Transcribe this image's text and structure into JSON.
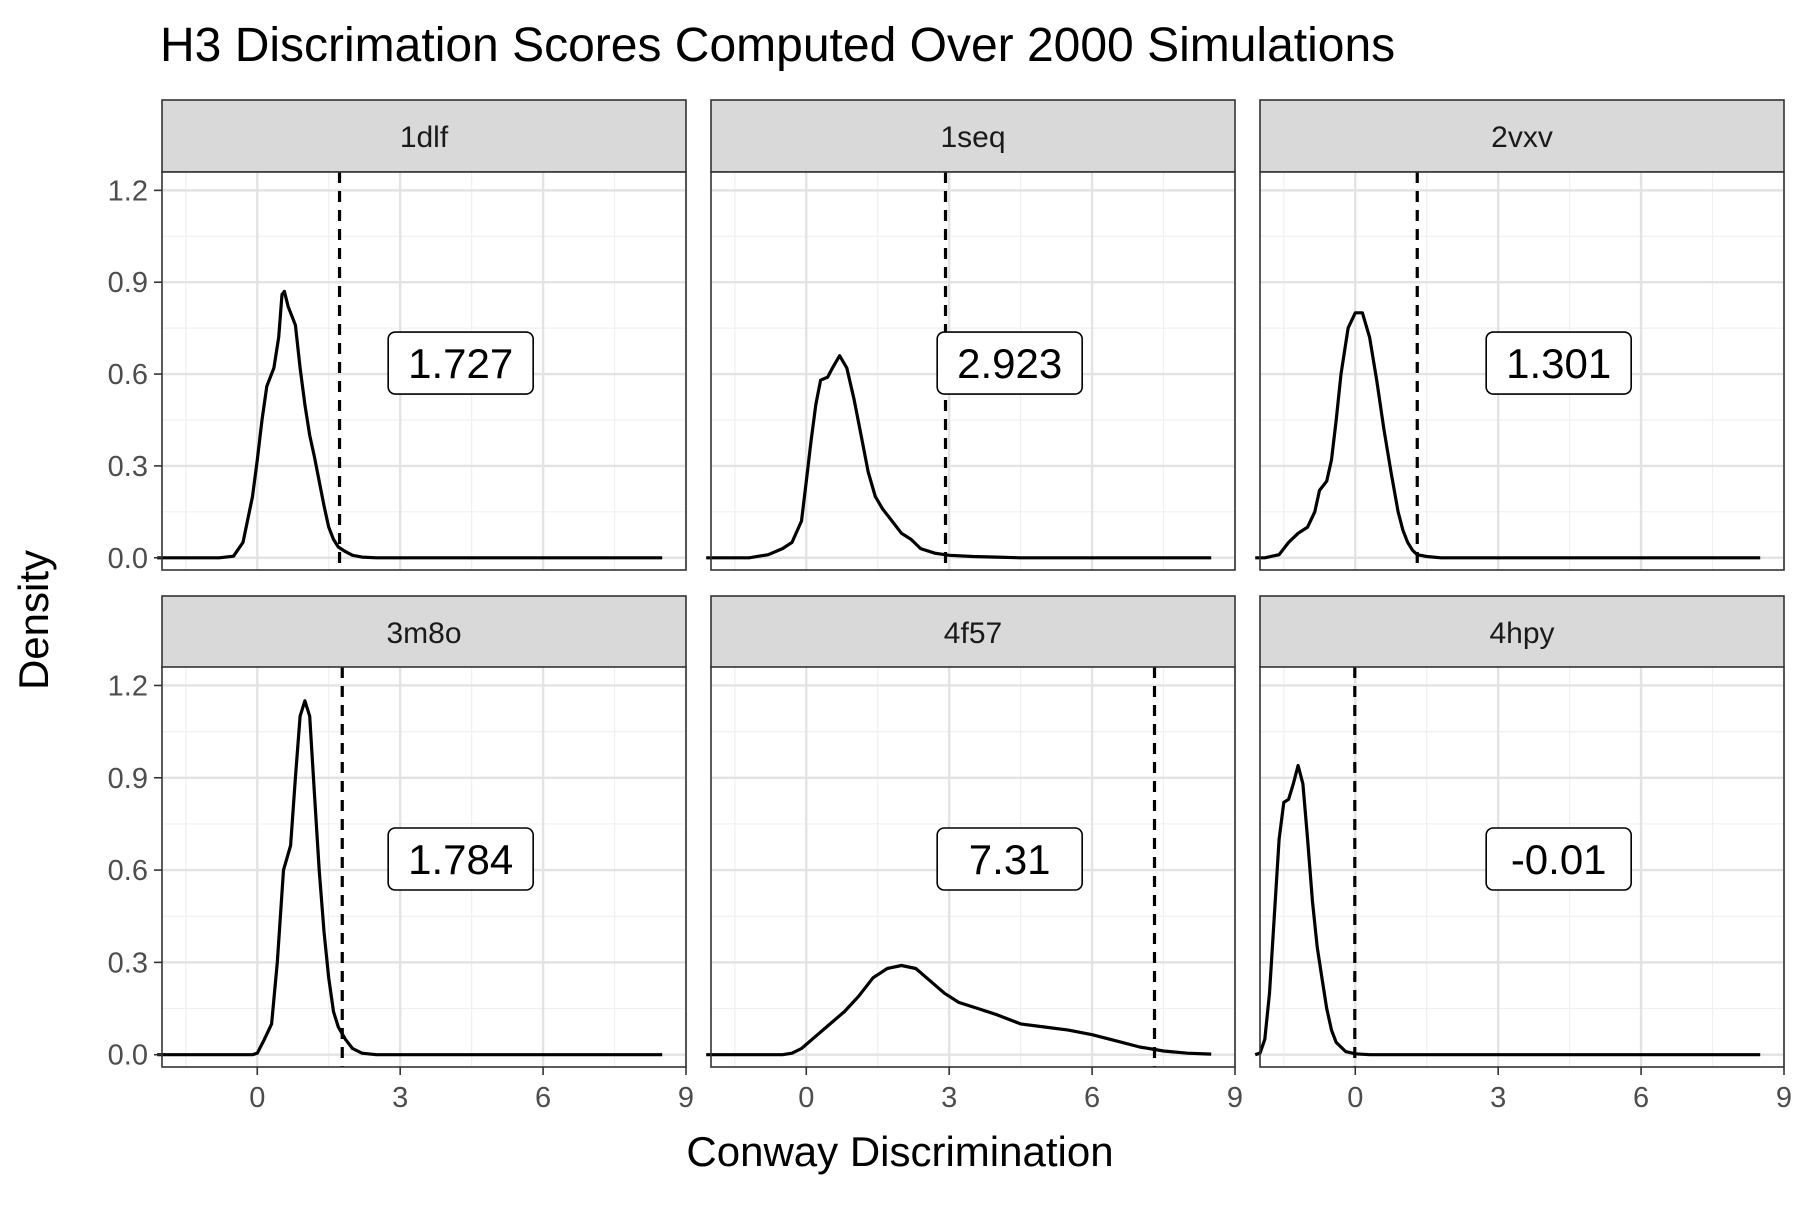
{
  "chart_data": {
    "type": "area",
    "title": "H3 Discrimation Scores Computed Over 2000 Simulations",
    "xlabel": "Conway Discrimination",
    "ylabel": "Density",
    "xlim": [
      -2.0,
      9.0
    ],
    "ylim": [
      -0.04,
      1.26
    ],
    "x_ticks": [
      0,
      3,
      6,
      9
    ],
    "y_ticks": [
      0.0,
      0.3,
      0.6,
      0.9,
      1.2
    ],
    "x_tick_labels": [
      "0",
      "3",
      "6",
      "9"
    ],
    "y_tick_labels": [
      "0.0",
      "0.3",
      "0.6",
      "0.9",
      "1.2"
    ],
    "grid": true,
    "line_color": "#000000",
    "strip_color": "#d9d9d9",
    "panels": [
      {
        "name": "1dlf",
        "observed": 1.727,
        "label": "1.727",
        "curve": [
          [
            -2.1,
            0
          ],
          [
            -0.8,
            0
          ],
          [
            -0.5,
            0.005
          ],
          [
            -0.3,
            0.05
          ],
          [
            -0.1,
            0.2
          ],
          [
            0.0,
            0.32
          ],
          [
            0.1,
            0.45
          ],
          [
            0.2,
            0.56
          ],
          [
            0.35,
            0.62
          ],
          [
            0.45,
            0.72
          ],
          [
            0.52,
            0.86
          ],
          [
            0.57,
            0.87
          ],
          [
            0.65,
            0.82
          ],
          [
            0.8,
            0.76
          ],
          [
            0.9,
            0.62
          ],
          [
            1.0,
            0.5
          ],
          [
            1.1,
            0.4
          ],
          [
            1.2,
            0.33
          ],
          [
            1.3,
            0.25
          ],
          [
            1.4,
            0.17
          ],
          [
            1.5,
            0.1
          ],
          [
            1.6,
            0.06
          ],
          [
            1.7,
            0.035
          ],
          [
            1.85,
            0.02
          ],
          [
            2.0,
            0.008
          ],
          [
            2.2,
            0.002
          ],
          [
            2.5,
            0
          ],
          [
            8.5,
            0
          ]
        ]
      },
      {
        "name": "1seq",
        "observed": 2.923,
        "label": "2.923",
        "curve": [
          [
            -2.1,
            0
          ],
          [
            -1.2,
            0
          ],
          [
            -0.8,
            0.01
          ],
          [
            -0.5,
            0.03
          ],
          [
            -0.3,
            0.05
          ],
          [
            -0.1,
            0.12
          ],
          [
            0.0,
            0.25
          ],
          [
            0.1,
            0.38
          ],
          [
            0.2,
            0.5
          ],
          [
            0.3,
            0.58
          ],
          [
            0.45,
            0.59
          ],
          [
            0.55,
            0.62
          ],
          [
            0.7,
            0.66
          ],
          [
            0.85,
            0.62
          ],
          [
            1.0,
            0.52
          ],
          [
            1.15,
            0.4
          ],
          [
            1.3,
            0.28
          ],
          [
            1.45,
            0.2
          ],
          [
            1.6,
            0.16
          ],
          [
            1.8,
            0.12
          ],
          [
            2.0,
            0.08
          ],
          [
            2.2,
            0.06
          ],
          [
            2.4,
            0.03
          ],
          [
            2.7,
            0.015
          ],
          [
            3.0,
            0.008
          ],
          [
            3.5,
            0.004
          ],
          [
            4.0,
            0.002
          ],
          [
            4.5,
            0
          ],
          [
            8.5,
            0
          ]
        ]
      },
      {
        "name": "2vxv",
        "observed": 1.301,
        "label": "1.301",
        "curve": [
          [
            -2.1,
            0
          ],
          [
            -1.9,
            0
          ],
          [
            -1.6,
            0.01
          ],
          [
            -1.4,
            0.05
          ],
          [
            -1.2,
            0.08
          ],
          [
            -1.0,
            0.1
          ],
          [
            -0.85,
            0.15
          ],
          [
            -0.75,
            0.22
          ],
          [
            -0.6,
            0.25
          ],
          [
            -0.5,
            0.32
          ],
          [
            -0.4,
            0.45
          ],
          [
            -0.3,
            0.6
          ],
          [
            -0.15,
            0.75
          ],
          [
            0.0,
            0.8
          ],
          [
            0.15,
            0.8
          ],
          [
            0.3,
            0.72
          ],
          [
            0.45,
            0.58
          ],
          [
            0.6,
            0.42
          ],
          [
            0.75,
            0.28
          ],
          [
            0.9,
            0.15
          ],
          [
            1.0,
            0.09
          ],
          [
            1.1,
            0.05
          ],
          [
            1.2,
            0.025
          ],
          [
            1.3,
            0.01
          ],
          [
            1.5,
            0.004
          ],
          [
            1.8,
            0
          ],
          [
            8.5,
            0
          ]
        ]
      },
      {
        "name": "3m8o",
        "observed": 1.784,
        "label": "1.784",
        "curve": [
          [
            -2.1,
            0
          ],
          [
            -0.1,
            0
          ],
          [
            0.0,
            0.005
          ],
          [
            0.15,
            0.05
          ],
          [
            0.3,
            0.1
          ],
          [
            0.42,
            0.3
          ],
          [
            0.55,
            0.6
          ],
          [
            0.7,
            0.68
          ],
          [
            0.8,
            0.9
          ],
          [
            0.9,
            1.1
          ],
          [
            1.0,
            1.15
          ],
          [
            1.1,
            1.1
          ],
          [
            1.2,
            0.85
          ],
          [
            1.3,
            0.6
          ],
          [
            1.4,
            0.4
          ],
          [
            1.5,
            0.25
          ],
          [
            1.6,
            0.14
          ],
          [
            1.7,
            0.09
          ],
          [
            1.85,
            0.05
          ],
          [
            2.0,
            0.02
          ],
          [
            2.2,
            0.005
          ],
          [
            2.5,
            0
          ],
          [
            8.5,
            0
          ]
        ]
      },
      {
        "name": "4f57",
        "observed": 7.31,
        "label": "7.31",
        "curve": [
          [
            -2.1,
            0
          ],
          [
            -0.5,
            0
          ],
          [
            -0.3,
            0.005
          ],
          [
            -0.1,
            0.02
          ],
          [
            0.2,
            0.06
          ],
          [
            0.5,
            0.1
          ],
          [
            0.8,
            0.14
          ],
          [
            1.1,
            0.19
          ],
          [
            1.4,
            0.25
          ],
          [
            1.7,
            0.28
          ],
          [
            2.0,
            0.29
          ],
          [
            2.3,
            0.28
          ],
          [
            2.6,
            0.24
          ],
          [
            2.9,
            0.2
          ],
          [
            3.2,
            0.17
          ],
          [
            3.6,
            0.15
          ],
          [
            4.0,
            0.13
          ],
          [
            4.5,
            0.1
          ],
          [
            5.0,
            0.09
          ],
          [
            5.5,
            0.08
          ],
          [
            6.0,
            0.065
          ],
          [
            6.5,
            0.045
          ],
          [
            7.0,
            0.025
          ],
          [
            7.5,
            0.012
          ],
          [
            8.0,
            0.005
          ],
          [
            8.5,
            0.002
          ]
        ]
      },
      {
        "name": "4hpy",
        "observed": -0.01,
        "label": "-0.01",
        "curve": [
          [
            -2.1,
            0
          ],
          [
            -2.0,
            0.005
          ],
          [
            -1.9,
            0.05
          ],
          [
            -1.8,
            0.2
          ],
          [
            -1.7,
            0.45
          ],
          [
            -1.6,
            0.7
          ],
          [
            -1.5,
            0.82
          ],
          [
            -1.4,
            0.83
          ],
          [
            -1.3,
            0.88
          ],
          [
            -1.2,
            0.94
          ],
          [
            -1.1,
            0.88
          ],
          [
            -1.0,
            0.7
          ],
          [
            -0.9,
            0.5
          ],
          [
            -0.8,
            0.35
          ],
          [
            -0.7,
            0.25
          ],
          [
            -0.6,
            0.15
          ],
          [
            -0.5,
            0.08
          ],
          [
            -0.4,
            0.04
          ],
          [
            -0.2,
            0.01
          ],
          [
            0.0,
            0.003
          ],
          [
            0.3,
            0
          ],
          [
            8.5,
            0
          ]
        ]
      }
    ]
  }
}
